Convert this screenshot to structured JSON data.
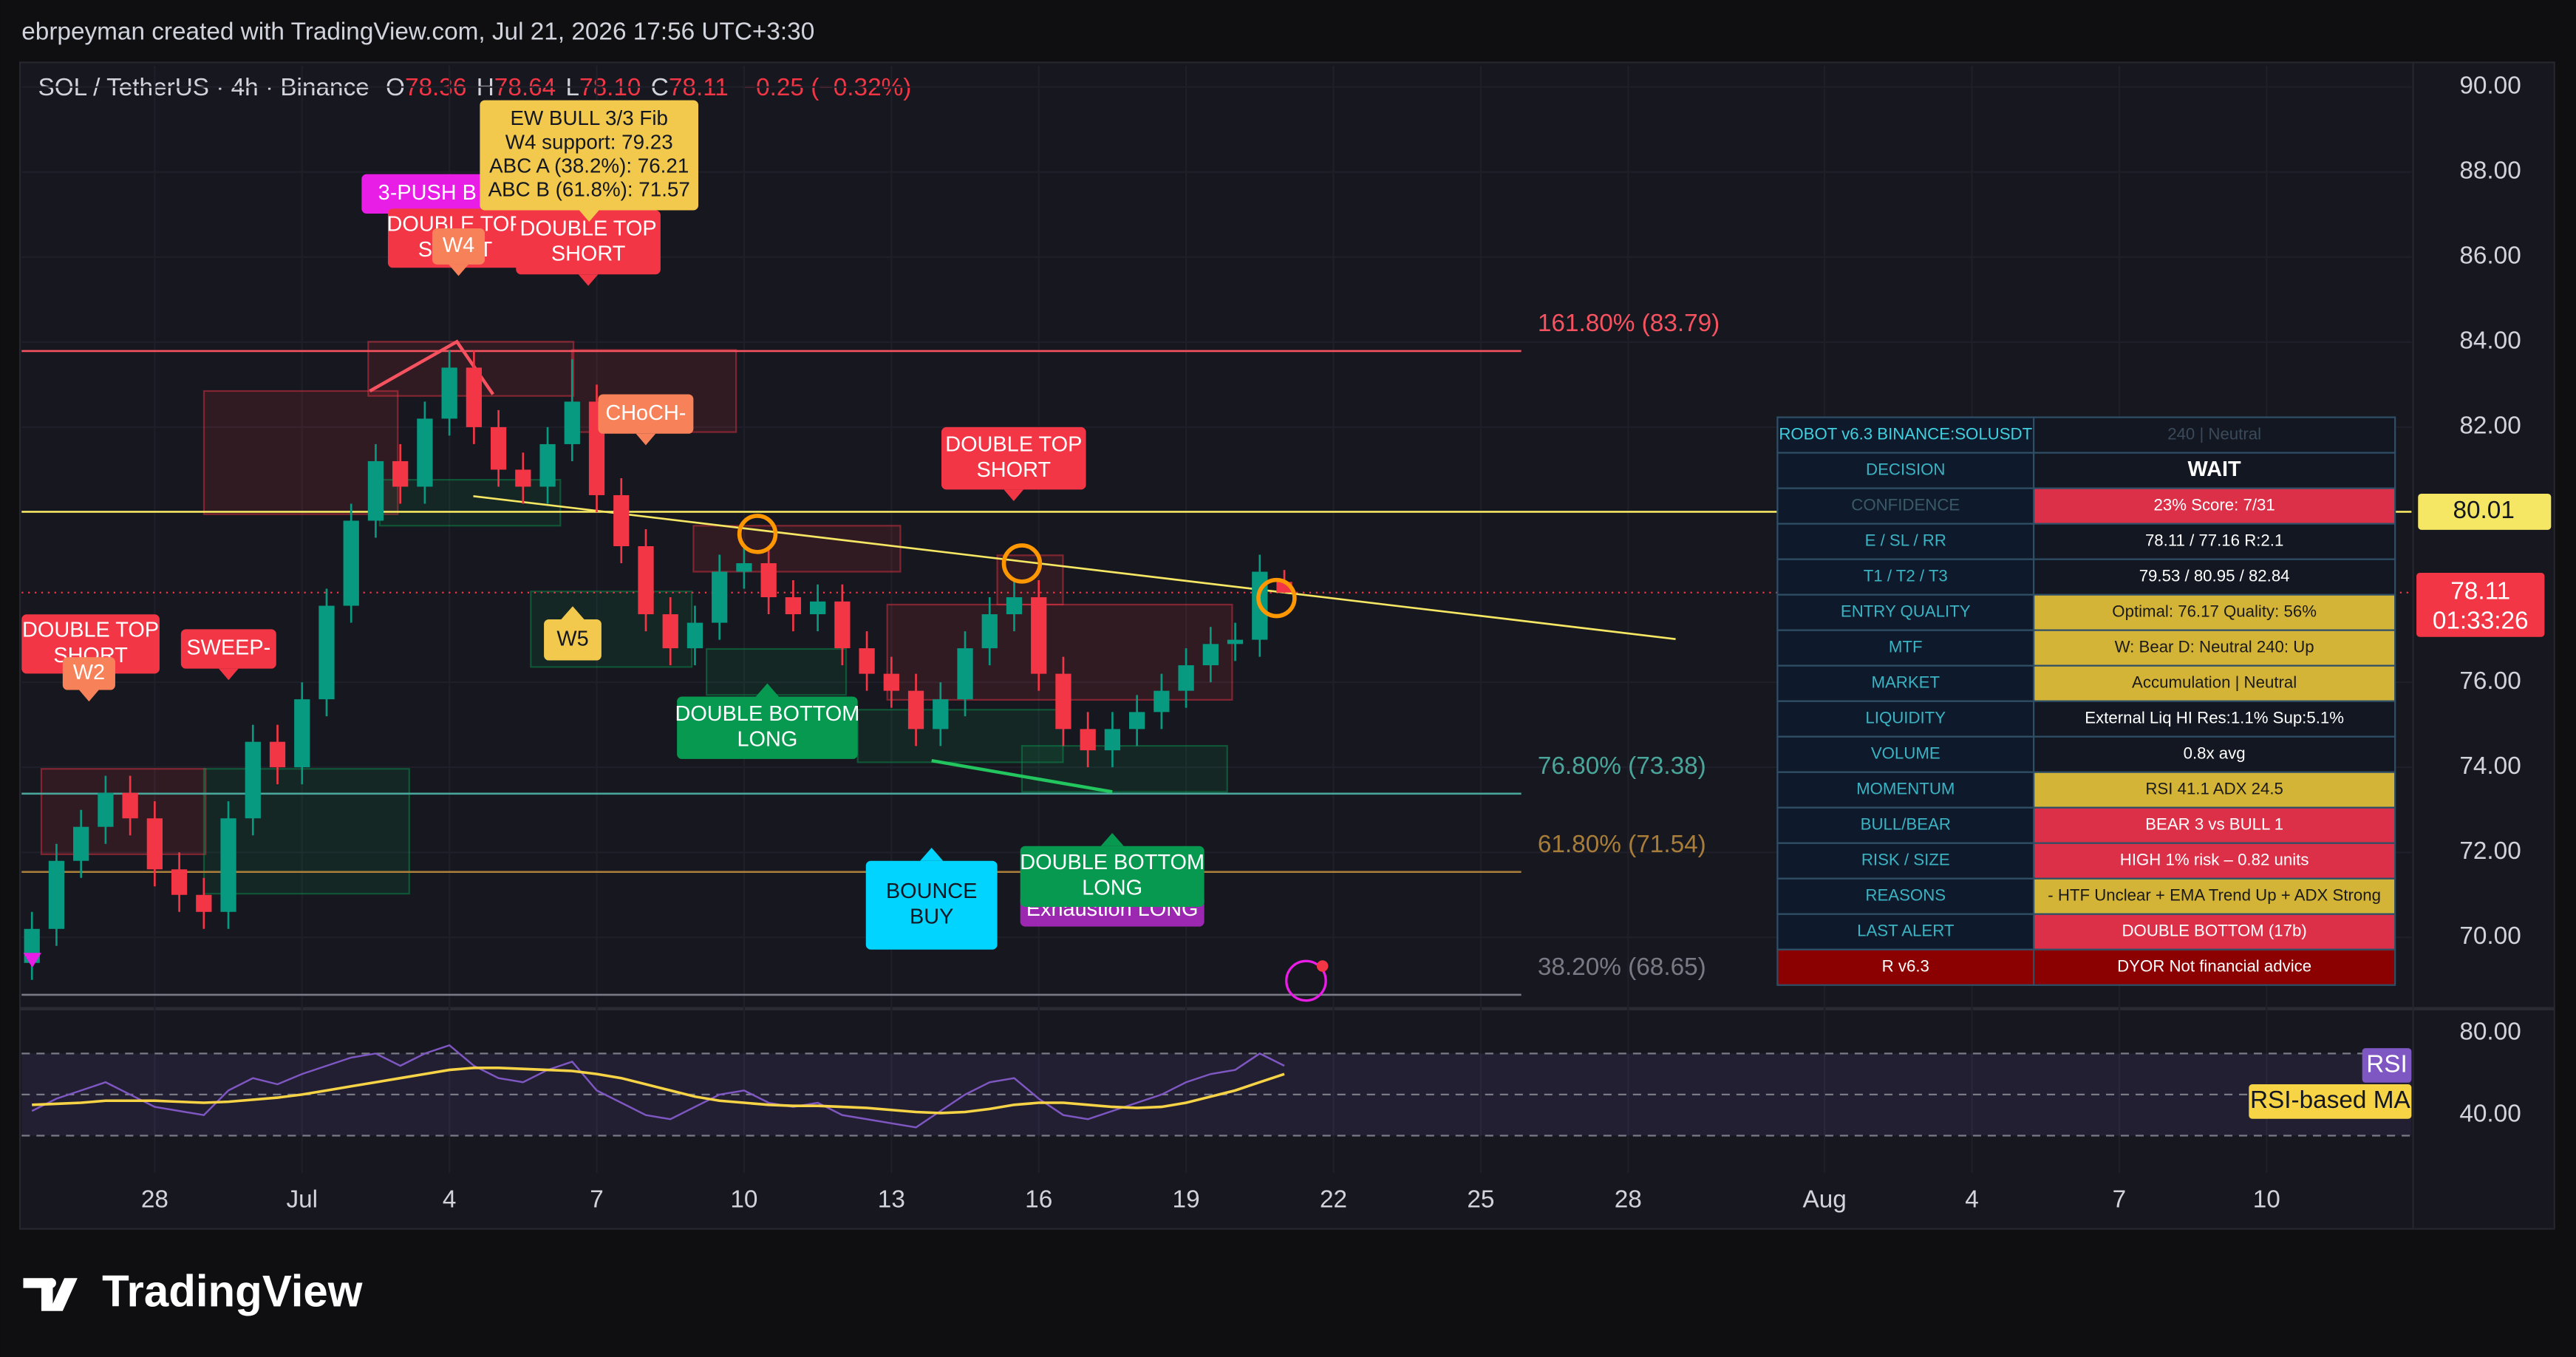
{
  "header": {
    "credit": "ebrpeyman created with TradingView.com, Jul 21, 2026 17:56 UTC+3:30",
    "symbol": "SOL / TetherUS · 4h · Binance",
    "legend": [
      {
        "key": "O",
        "value": "78.36"
      },
      {
        "key": "H",
        "value": "78.64"
      },
      {
        "key": "L",
        "value": "78.10"
      },
      {
        "key": "C",
        "value": "78.11"
      }
    ],
    "change": "−0.25 (−0.32%)"
  },
  "chart_data": [
    {
      "type": "candlestick",
      "x": [
        -2.5,
        -2,
        -1.5,
        -1,
        -0.5,
        0,
        0.5,
        1,
        1.5,
        2,
        2.5,
        3,
        3.5,
        4,
        4.5,
        5,
        5.5,
        6,
        6.5,
        7,
        7.5,
        8,
        8.5,
        9,
        9.5,
        10,
        10.5,
        11,
        11.5,
        12,
        12.5,
        13,
        13.5,
        14,
        14.5,
        15,
        15.5,
        16,
        16.5,
        17,
        17.5,
        18,
        18.5,
        19,
        19.5,
        20,
        20.5,
        21,
        21.5,
        22,
        22.5,
        23
      ],
      "open": [
        69.4,
        70.2,
        71.8,
        72.6,
        73.4,
        72.8,
        71.6,
        71.0,
        70.6,
        72.8,
        74.6,
        74.0,
        75.6,
        77.8,
        79.8,
        81.2,
        80.6,
        82.2,
        83.4,
        82.0,
        81.0,
        80.6,
        81.6,
        82.6,
        80.4,
        79.2,
        77.6,
        76.8,
        77.4,
        78.6,
        78.8,
        78.0,
        77.6,
        77.9,
        76.8,
        76.2,
        75.8,
        74.9,
        75.6,
        76.8,
        77.6,
        78.0,
        76.2,
        74.9,
        74.4,
        74.9,
        75.3,
        75.8,
        76.4,
        76.9,
        77.0,
        78.36
      ],
      "high": [
        70.6,
        72.2,
        73.0,
        73.8,
        73.8,
        73.2,
        72.0,
        71.4,
        73.2,
        75.0,
        75.0,
        76.0,
        78.2,
        80.2,
        81.6,
        81.6,
        82.6,
        83.8,
        83.8,
        82.4,
        81.4,
        82.0,
        83.6,
        83.0,
        80.8,
        79.6,
        78.0,
        77.8,
        79.0,
        79.2,
        79.2,
        78.4,
        78.3,
        78.3,
        77.2,
        76.6,
        76.2,
        76.0,
        77.2,
        78.0,
        78.4,
        78.4,
        76.6,
        75.3,
        75.3,
        75.7,
        76.2,
        76.8,
        77.3,
        77.4,
        79.0,
        78.64
      ],
      "low": [
        69.0,
        69.8,
        71.4,
        72.2,
        72.4,
        71.2,
        70.6,
        70.2,
        70.2,
        72.4,
        73.6,
        73.6,
        75.2,
        77.4,
        79.4,
        80.2,
        80.2,
        81.8,
        81.6,
        80.6,
        80.2,
        80.2,
        81.2,
        80.0,
        78.8,
        77.2,
        76.4,
        76.4,
        77.0,
        78.2,
        77.6,
        77.2,
        77.2,
        76.4,
        75.8,
        75.4,
        74.5,
        74.5,
        75.2,
        76.4,
        77.2,
        75.8,
        74.5,
        74.0,
        74.0,
        74.5,
        74.9,
        75.4,
        76.0,
        76.5,
        76.6,
        78.1
      ],
      "close": [
        70.2,
        71.8,
        72.6,
        73.4,
        72.8,
        71.6,
        71.0,
        70.6,
        72.8,
        74.6,
        74.0,
        75.6,
        77.8,
        79.8,
        81.2,
        80.6,
        82.2,
        83.4,
        82.0,
        81.0,
        80.6,
        81.6,
        82.6,
        80.4,
        79.2,
        77.6,
        76.8,
        77.4,
        78.6,
        78.8,
        78.0,
        77.6,
        77.9,
        76.8,
        76.2,
        75.8,
        74.9,
        75.6,
        76.8,
        77.6,
        78.0,
        76.2,
        74.9,
        74.4,
        74.9,
        75.3,
        75.8,
        76.4,
        76.9,
        77.0,
        78.6,
        78.11
      ],
      "up_color": "#089981",
      "down_color": "#f23645",
      "xlim": [
        -2.71,
        45.95
      ],
      "xticks": [
        {
          "value": 0,
          "label": "28"
        },
        {
          "value": 3,
          "label": "Jul"
        },
        {
          "value": 6,
          "label": "4"
        },
        {
          "value": 9,
          "label": "7"
        },
        {
          "value": 12,
          "label": "10"
        },
        {
          "value": 15,
          "label": "13"
        },
        {
          "value": 18,
          "label": "16"
        },
        {
          "value": 21,
          "label": "19"
        },
        {
          "value": 24,
          "label": "22"
        },
        {
          "value": 27,
          "label": "25"
        },
        {
          "value": 30,
          "label": "28"
        },
        {
          "value": 34,
          "label": "Aug"
        },
        {
          "value": 37,
          "label": "4"
        },
        {
          "value": 40,
          "label": "7"
        },
        {
          "value": 43,
          "label": "10"
        }
      ],
      "ylim": [
        68.4,
        90.5
      ],
      "yticks": [
        {
          "value": 90,
          "label": "90.00"
        },
        {
          "value": 88,
          "label": "88.00"
        },
        {
          "value": 86,
          "label": "86.00"
        },
        {
          "value": 84,
          "label": "84.00"
        },
        {
          "value": 82,
          "label": "82.00"
        },
        {
          "value": 76,
          "label": "76.00"
        },
        {
          "value": 74,
          "label": "74.00"
        },
        {
          "value": 72,
          "label": "72.00"
        },
        {
          "value": 70,
          "label": "70.00"
        }
      ],
      "grid": true,
      "levels": [
        {
          "value": 83.79,
          "label": "161.80% (83.79)",
          "color": "#f7525f"
        },
        {
          "value": 80.01,
          "label": "80.01",
          "color": "#f5e663",
          "axis_badge": true
        },
        {
          "value": 73.38,
          "label": "76.80% (73.38)",
          "color": "#4aa59a"
        },
        {
          "value": 71.54,
          "label": "61.80% (71.54)",
          "color": "#a87d3a"
        },
        {
          "value": 68.65,
          "label": "38.20% (68.65)",
          "color": "#787b86"
        }
      ],
      "price_badge": {
        "label": "78.11",
        "countdown": "01:33:26",
        "color": "#f23645"
      },
      "annotations": [
        {
          "lines": [
            "3-PUSH B"
          ],
          "color": "#e91ee6"
        },
        {
          "lines": [
            "DOUBLE TOP",
            "SHORT"
          ],
          "color": "#f23645"
        },
        {
          "lines": [
            "W4"
          ],
          "color": "#f7825a"
        },
        {
          "lines": [
            "DOUBLE TOP",
            "SHORT"
          ],
          "color": "#f23645"
        },
        {
          "lines": [
            "EW BULL 3/3 Fib",
            "W4 support: 79.23",
            "ABC A (38.2%): 76.21",
            "ABC B (61.8%): 71.57"
          ],
          "color": "#f2c94c"
        },
        {
          "lines": [
            "CHoCH-"
          ],
          "color": "#f7825a"
        },
        {
          "lines": [
            "DOUBLE TOP",
            "SHORT"
          ],
          "color": "#f23645"
        },
        {
          "lines": [
            "DOUBLE TOP",
            "SHORT"
          ],
          "color": "#f23645"
        },
        {
          "lines": [
            "W2"
          ],
          "color": "#f7825a"
        },
        {
          "lines": [
            "SWEEP-"
          ],
          "color": "#f23645"
        },
        {
          "lines": [
            "W5"
          ],
          "color": "#f2c94c"
        },
        {
          "lines": [
            "DOUBLE BOTTOM",
            "LONG"
          ],
          "color": "#089950"
        },
        {
          "lines": [
            "BOUNCE",
            "BUY"
          ],
          "color": "#00d4ff"
        },
        {
          "lines": [
            "Exhaustion LONG"
          ],
          "color": "#9c27b0"
        },
        {
          "lines": [
            "DOUBLE BOTTOM",
            "LONG"
          ],
          "color": "#089950"
        }
      ]
    },
    {
      "type": "line",
      "x": [
        -2.5,
        -2,
        -1.5,
        -1,
        -0.5,
        0,
        0.5,
        1,
        1.5,
        2,
        2.5,
        3,
        3.5,
        4,
        4.5,
        5,
        5.5,
        6,
        6.5,
        7,
        7.5,
        8,
        8.5,
        9,
        9.5,
        10,
        10.5,
        11,
        11.5,
        12,
        12.5,
        13,
        13.5,
        14,
        14.5,
        15,
        15.5,
        16,
        16.5,
        17,
        17.5,
        18,
        18.5,
        19,
        19.5,
        20,
        20.5,
        21,
        21.5,
        22,
        22.5,
        23
      ],
      "series": [
        {
          "name": "RSI",
          "color": "#7e57c2",
          "values": [
            42,
            48,
            52,
            56,
            50,
            44,
            42,
            40,
            52,
            58,
            55,
            60,
            64,
            68,
            70,
            64,
            70,
            74,
            64,
            58,
            56,
            62,
            66,
            52,
            46,
            40,
            38,
            44,
            50,
            52,
            46,
            44,
            46,
            40,
            38,
            36,
            34,
            42,
            50,
            56,
            58,
            48,
            40,
            38,
            42,
            46,
            50,
            56,
            60,
            62,
            70,
            64
          ]
        },
        {
          "name": "RSI-based MA",
          "color": "#f7d346",
          "values": [
            45,
            45.5,
            46,
            47,
            47,
            47,
            46.5,
            46,
            46.5,
            47.5,
            48.5,
            50,
            52,
            54,
            56,
            58,
            60,
            62,
            63,
            63,
            62.5,
            62,
            61.5,
            60,
            58,
            55,
            52,
            49,
            47,
            46,
            45,
            44.5,
            44.5,
            44,
            43.5,
            42.5,
            41.5,
            41,
            41.5,
            43,
            45,
            46,
            46,
            45,
            44,
            43.5,
            44,
            46,
            49,
            52,
            56,
            60
          ]
        }
      ],
      "ylim": [
        11.8,
        90.2
      ],
      "yticks": [
        {
          "value": 80,
          "label": "80.00"
        },
        {
          "value": 40,
          "label": "40.00"
        }
      ],
      "levels": [
        70,
        50,
        30
      ]
    }
  ],
  "table": {
    "rows": [
      [
        "ROBOT v6.3  BINANCE:SOLUSDT",
        "240 | Neutral"
      ],
      [
        "DECISION",
        "WAIT"
      ],
      [
        "CONFIDENCE",
        "23%  Score: 7/31"
      ],
      [
        "E / SL / RR",
        "78.11 / 77.16  R:2.1"
      ],
      [
        "T1 / T2 / T3",
        "79.53 / 80.95 / 82.84"
      ],
      [
        "ENTRY QUALITY",
        "Optimal: 76.17  Quality: 56%"
      ],
      [
        "MTF",
        "W: Bear  D: Neutral  240: Up"
      ],
      [
        "MARKET",
        "Accumulation | Neutral"
      ],
      [
        "LIQUIDITY",
        "External Liq HI  Res:1.1% Sup:5.1%"
      ],
      [
        "VOLUME",
        "0.8x avg"
      ],
      [
        "MOMENTUM",
        "RSI 41.1 ADX 24.5"
      ],
      [
        "BULL/BEAR",
        "BEAR 3 vs BULL 1"
      ],
      [
        "RISK / SIZE",
        "HIGH  1% risk – 0.82 units"
      ],
      [
        "REASONS",
        "- HTF Unclear  + EMA Trend Up  + ADX Strong"
      ],
      [
        "LAST ALERT",
        "DOUBLE BOTTOM (17b)"
      ],
      [
        "R v6.3",
        "DYOR  Not financial advice"
      ]
    ]
  },
  "brand": "TradingView"
}
